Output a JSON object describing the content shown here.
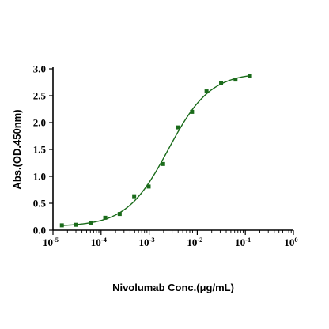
{
  "chart_data": {
    "type": "scatter",
    "title": "",
    "xlabel": "Nivolumab Conc.(μg/mL)",
    "ylabel": "Abs.(OD.450nm)",
    "x_scale": "log",
    "xlim": [
      1e-05,
      1
    ],
    "ylim": [
      0,
      3.0
    ],
    "x_ticks": [
      {
        "value": 1e-05,
        "base": "10",
        "exp": "-5"
      },
      {
        "value": 0.0001,
        "base": "10",
        "exp": "-4"
      },
      {
        "value": 0.001,
        "base": "10",
        "exp": "-3"
      },
      {
        "value": 0.01,
        "base": "10",
        "exp": "-2"
      },
      {
        "value": 0.1,
        "base": "10",
        "exp": "-1"
      },
      {
        "value": 1,
        "base": "10",
        "exp": "0"
      }
    ],
    "y_ticks": [
      {
        "value": 0,
        "label": "0.0"
      },
      {
        "value": 0.5,
        "label": "0.5"
      },
      {
        "value": 1.0,
        "label": "1.0"
      },
      {
        "value": 1.5,
        "label": "1.5"
      },
      {
        "value": 2.0,
        "label": "2.0"
      },
      {
        "value": 2.5,
        "label": "2.5"
      },
      {
        "value": 3.0,
        "label": "3.0"
      }
    ],
    "grid": false,
    "legend": "none",
    "colors": {
      "series": "#1a6b1a",
      "axis": "#000000"
    },
    "series": [
      {
        "marker": "square",
        "x": [
          1.53e-05,
          3.05e-05,
          6.1e-05,
          0.000122,
          0.000244,
          0.000488,
          0.000977,
          0.00195,
          0.0039,
          0.0078,
          0.0156,
          0.0313,
          0.0625,
          0.125
        ],
        "y": [
          0.09,
          0.1,
          0.14,
          0.23,
          0.3,
          0.63,
          0.81,
          1.23,
          1.91,
          2.2,
          2.58,
          2.74,
          2.8,
          2.87
        ]
      }
    ],
    "fit": {
      "type": "4PL",
      "bottom": 0.07,
      "top": 2.93,
      "ec50": 0.0025,
      "hill": 1.0,
      "x_range": [
        1.53e-05,
        0.125
      ]
    }
  }
}
